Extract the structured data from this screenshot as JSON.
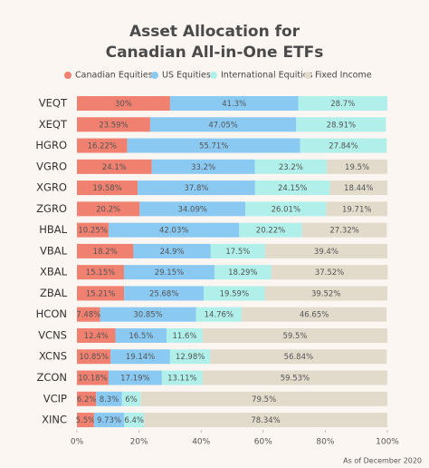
{
  "chart_data": {
    "type": "stacked-bar",
    "title": [
      "Asset Allocation for",
      "Canadian All-in-One ETFs"
    ],
    "note": "As of December 2020",
    "categories": [
      "VEQT",
      "XEQT",
      "HGRO",
      "VGRO",
      "XGRO",
      "ZGRO",
      "HBAL",
      "VBAL",
      "XBAL",
      "ZBAL",
      "HCON",
      "VCNS",
      "XCNS",
      "ZCON",
      "VCIP",
      "XINC"
    ],
    "series": [
      {
        "name": "Canadian Equities",
        "color": "#f0806f",
        "values": [
          30,
          23.59,
          16.22,
          24.1,
          19.58,
          20.2,
          10.25,
          18.2,
          15.15,
          15.21,
          7.48,
          12.4,
          10.85,
          10.18,
          6.2,
          5.5
        ],
        "value_labels": [
          "30%",
          "23.59%",
          "16.22%",
          "24.1%",
          "19.58%",
          "20.2%",
          "10.25%",
          "18.2%",
          "15.15%",
          "15.21%",
          "7.48%",
          "12.4%",
          "10.85%",
          "10.18%",
          "6.2%",
          "5.5%"
        ]
      },
      {
        "name": "US Equities",
        "color": "#89c9f2",
        "values": [
          41.3,
          47.05,
          55.71,
          33.2,
          37.8,
          34.09,
          42.03,
          24.9,
          29.15,
          25.68,
          30.85,
          16.5,
          19.14,
          17.19,
          8.3,
          9.73
        ],
        "value_labels": [
          "41.3%",
          "47.05%",
          "55.71%",
          "33.2%",
          "37.8%",
          "34.09%",
          "42.03%",
          "24.9%",
          "29.15%",
          "25.68%",
          "30.85%",
          "16.5%",
          "19.14%",
          "17.19%",
          "8.3%",
          "9.73%"
        ]
      },
      {
        "name": "International Equities",
        "color": "#b0efea",
        "values": [
          28.7,
          28.91,
          27.84,
          23.2,
          24.15,
          26.01,
          20.22,
          17.5,
          18.29,
          19.59,
          14.76,
          11.6,
          12.98,
          13.11,
          6,
          6.4
        ],
        "value_labels": [
          "28.7%",
          "28.91%",
          "27.84%",
          "23.2%",
          "24.15%",
          "26.01%",
          "20.22%",
          "17.5%",
          "18.29%",
          "19.59%",
          "14.76%",
          "11.6%",
          "12.98%",
          "13.11%",
          "6%",
          "6.4%"
        ]
      },
      {
        "name": "Fixed Income",
        "color": "#e2dacb",
        "values": [
          null,
          null,
          null,
          19.5,
          18.44,
          19.71,
          27.32,
          39.4,
          37.52,
          39.52,
          46.65,
          59.5,
          56.84,
          59.53,
          79.5,
          78.34
        ],
        "value_labels": [
          null,
          null,
          null,
          "19.5%",
          "18.44%",
          "19.71%",
          "27.32%",
          "39.4%",
          "37.52%",
          "39.52%",
          "46.65%",
          "59.5%",
          "56.84%",
          "59.53%",
          "79.5%",
          "78.34%"
        ]
      }
    ],
    "xlim": [
      0,
      100
    ],
    "xticks": [
      {
        "value": 0,
        "label": "0%"
      },
      {
        "value": 20,
        "label": "20%"
      },
      {
        "value": 40,
        "label": "40%"
      },
      {
        "value": 60,
        "label": "60%"
      },
      {
        "value": 80,
        "label": "80%"
      },
      {
        "value": 100,
        "label": "100%"
      }
    ]
  }
}
